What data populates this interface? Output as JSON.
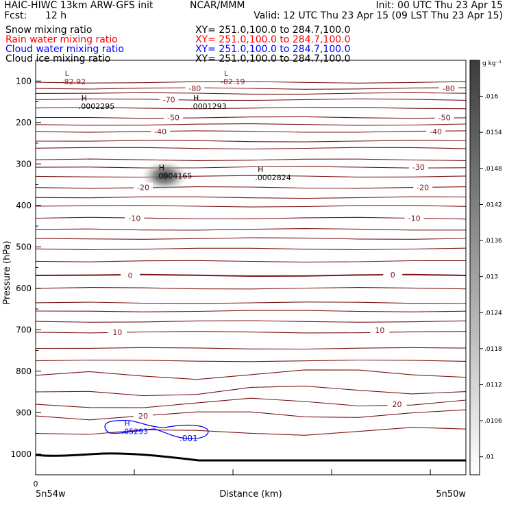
{
  "header": {
    "title": "HAIC-HIWC 13km ARW-GFS init",
    "org": "NCAR/MMM",
    "init": "Init: 00 UTC Thu 23 Apr 15",
    "fcst_label": "Fcst:",
    "fcst_value": "12 h",
    "valid": "Valid: 12 UTC Thu 23 Apr 15 (09 LST Thu 23 Apr 15)"
  },
  "fields": [
    {
      "label": "Snow mixing ratio",
      "xy": "XY= 251.0,100.0 to 284.7,100.0",
      "color": "#000000"
    },
    {
      "label": "Rain water mixing ratio",
      "xy": "XY= 251.0,100.0 to 284.7,100.0",
      "color": "#ff0000"
    },
    {
      "label": "Cloud water mixing ratio",
      "xy": "XY= 251.0,100.0 to 284.7,100.0",
      "color": "#0000ff"
    },
    {
      "label": "Cloud ice mixing ratio",
      "xy": "XY= 251.0,100.0 to 284.7,100.0",
      "color": "#000000"
    }
  ],
  "chart_data": {
    "type": "contour",
    "xlabel": "Distance (km)",
    "ylabel": "Pressure (hPa)",
    "x_tick_labels": [
      "0"
    ],
    "x_end_labels": {
      "left": "5n54w",
      "right": "5n50w"
    },
    "ylim": [
      1050,
      50
    ],
    "y_ticks": [
      100,
      200,
      300,
      400,
      500,
      600,
      700,
      800,
      900,
      1000
    ],
    "colorbar": {
      "unit": "g kg⁻¹",
      "ticks": [
        ".01",
        ".0106",
        ".0112",
        ".0118",
        ".0124",
        ".013",
        ".0136",
        ".0142",
        ".0148",
        ".0154",
        ".016"
      ],
      "range": [
        0.0097,
        0.0166
      ]
    },
    "temperature_labels": [
      {
        "value": "-80",
        "p": 118,
        "d": 0.37
      },
      {
        "value": "-80",
        "p": 118,
        "d": 0.96
      },
      {
        "value": "-70",
        "p": 145,
        "d": 0.31
      },
      {
        "value": "-50",
        "p": 188,
        "d": 0.32
      },
      {
        "value": "-50",
        "p": 188,
        "d": 0.95
      },
      {
        "value": "-40",
        "p": 222,
        "d": 0.29
      },
      {
        "value": "-40",
        "p": 222,
        "d": 0.93
      },
      {
        "value": "-30",
        "p": 308,
        "d": 0.89
      },
      {
        "value": "-20",
        "p": 357,
        "d": 0.25
      },
      {
        "value": "-20",
        "p": 357,
        "d": 0.9
      },
      {
        "value": "-10",
        "p": 431,
        "d": 0.23
      },
      {
        "value": "-10",
        "p": 431,
        "d": 0.88
      },
      {
        "value": "0",
        "p": 569,
        "d": 0.22
      },
      {
        "value": "0",
        "p": 567,
        "d": 0.83
      },
      {
        "value": "10",
        "p": 706,
        "d": 0.19
      },
      {
        "value": "10",
        "p": 701,
        "d": 0.8
      },
      {
        "value": "20",
        "p": 908,
        "d": 0.25
      },
      {
        "value": "20",
        "p": 880,
        "d": 0.84
      }
    ],
    "markers": [
      {
        "type": "L",
        "value": "-82.92",
        "p": 91,
        "d": 0.06,
        "color": "#8b1a1a"
      },
      {
        "type": "L",
        "value": "-82.19",
        "p": 91,
        "d": 0.43,
        "color": "#8b1a1a"
      },
      {
        "type": "H",
        "value": ".0002295",
        "p": 151,
        "d": 0.1,
        "color": "#000000"
      },
      {
        "type": "H",
        "value": ".0001293",
        "p": 151,
        "d": 0.36,
        "color": "#000000"
      },
      {
        "type": "H",
        "value": ".0004165",
        "p": 319,
        "d": 0.28,
        "color": "#000000"
      },
      {
        "type": "H",
        "value": ".0002824",
        "p": 323,
        "d": 0.51,
        "color": "#000000"
      },
      {
        "type": "H",
        "value": ".05293",
        "p": 935,
        "d": 0.2,
        "color": "#0000ff"
      }
    ],
    "cloud_water_contours": [
      {
        "value": ".001",
        "color": "#0000ff"
      }
    ],
    "snow_max": {
      "p": 329,
      "d": 0.3,
      "value": 0.0162
    }
  }
}
